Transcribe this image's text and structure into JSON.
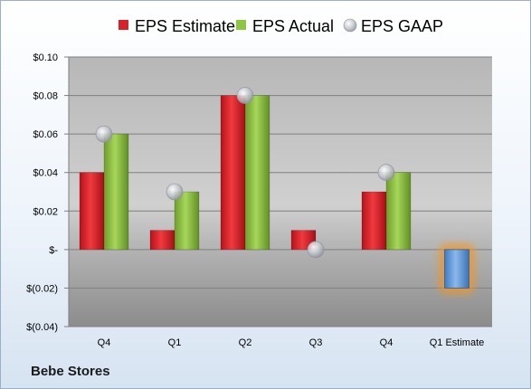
{
  "company": "Bebe Stores",
  "chart_data": {
    "type": "bar",
    "title": "",
    "xlabel": "",
    "ylabel": "",
    "categories": [
      "Q4",
      "Q1",
      "Q2",
      "Q3",
      "Q4",
      "Q1 Estimate"
    ],
    "series": [
      {
        "name": "EPS Estimate",
        "kind": "bar",
        "color": "#e8232a",
        "values": [
          0.04,
          0.01,
          0.08,
          0.01,
          0.03,
          null
        ]
      },
      {
        "name": "EPS Actual",
        "kind": "bar",
        "color": "#8dc63f",
        "values": [
          0.06,
          0.03,
          0.08,
          null,
          0.04,
          null
        ]
      },
      {
        "name": "EPS GAAP",
        "kind": "marker",
        "color": "#b8bcc4",
        "values": [
          0.06,
          0.03,
          0.08,
          0.0,
          0.04,
          null
        ]
      }
    ],
    "next_estimate": {
      "category": "Q1 Estimate",
      "value": -0.02,
      "color": "#5b9bd5",
      "glow": "#f7941d"
    },
    "ylim": [
      -0.04,
      0.1
    ],
    "yticks": [
      0.1,
      0.08,
      0.06,
      0.04,
      0.02,
      0,
      -0.02,
      -0.04
    ],
    "ytick_labels": [
      "$0.10",
      "$0.08",
      "$0.06",
      "$0.04",
      "$0.02",
      "$-",
      "$(0.02)",
      "$(0.04)"
    ],
    "grid": true,
    "legend_position": "top"
  }
}
